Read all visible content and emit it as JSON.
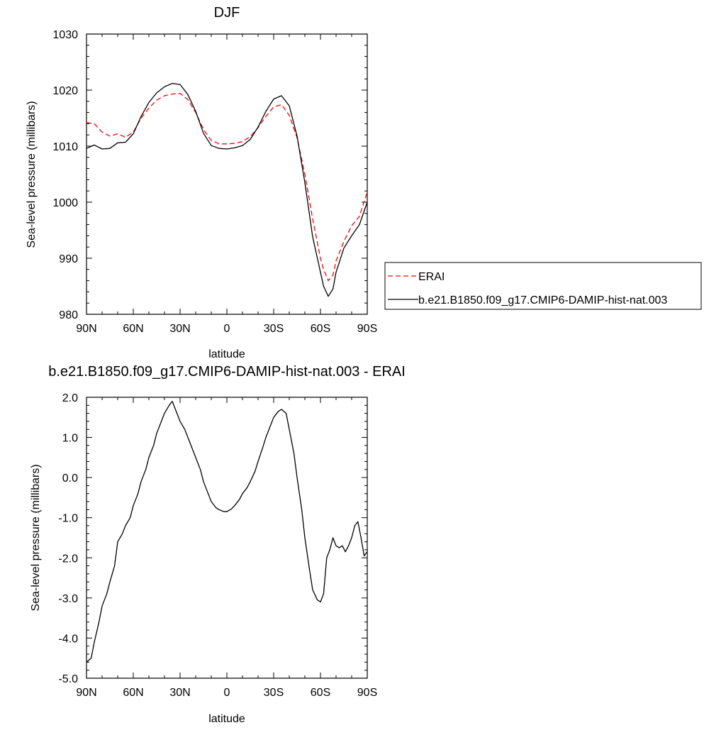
{
  "chart_data": [
    {
      "type": "line",
      "title": "DJF",
      "xlabel": "latitude",
      "ylabel": "Sea-level pressure (millibars)",
      "xlim": [
        -90,
        90
      ],
      "ylim": [
        980,
        1030
      ],
      "xticks": [
        -90,
        -60,
        -30,
        0,
        30,
        60,
        90
      ],
      "xtick_labels": [
        "90N",
        "60N",
        "30N",
        "0",
        "30S",
        "60S",
        "90S"
      ],
      "yticks": [
        980,
        990,
        1000,
        1010,
        1020,
        1030
      ],
      "ytick_labels": [
        "980",
        "990",
        "1000",
        "1010",
        "1020",
        "1030"
      ],
      "grid": false,
      "legend": {
        "placement": "right-outside",
        "entries": [
          {
            "name": "ERAI",
            "color": "#ff0000",
            "dash": "dashed"
          },
          {
            "name": "b.e21.B1850.f09_g17.CMIP6-DAMIP-hist-nat.003",
            "color": "#000000",
            "dash": "solid"
          }
        ]
      },
      "x": [
        -90,
        -85,
        -80,
        -75,
        -70,
        -65,
        -60,
        -55,
        -50,
        -45,
        -40,
        -35,
        -30,
        -25,
        -20,
        -15,
        -10,
        -5,
        0,
        5,
        10,
        15,
        20,
        25,
        30,
        35,
        40,
        45,
        50,
        55,
        60,
        62,
        65,
        68,
        70,
        75,
        80,
        85,
        90
      ],
      "series": [
        {
          "name": "ERAI",
          "color": "#ff0000",
          "dash": "dashed",
          "values": [
            1014.2,
            1014.0,
            1012.5,
            1011.8,
            1012.2,
            1011.6,
            1012.5,
            1015.0,
            1016.8,
            1018.2,
            1019.0,
            1019.3,
            1019.4,
            1018.3,
            1016.0,
            1013.0,
            1011.0,
            1010.4,
            1010.4,
            1010.5,
            1010.8,
            1011.7,
            1013.3,
            1015.3,
            1017.0,
            1017.4,
            1015.5,
            1011.5,
            1005.0,
            997.0,
            990.0,
            988.0,
            986.0,
            987.0,
            989.5,
            993.0,
            995.8,
            997.5,
            1001.8
          ]
        },
        {
          "name": "b.e21.B1850.f09_g17.CMIP6-DAMIP-hist-nat.003",
          "color": "#000000",
          "dash": "solid",
          "values": [
            1009.6,
            1010.2,
            1009.5,
            1009.6,
            1010.6,
            1010.7,
            1012.2,
            1015.3,
            1017.8,
            1019.5,
            1020.6,
            1021.2,
            1021.0,
            1019.2,
            1016.2,
            1012.3,
            1010.1,
            1009.6,
            1009.5,
            1009.7,
            1010.1,
            1011.2,
            1013.4,
            1016.2,
            1018.4,
            1019.0,
            1017.2,
            1011.8,
            1003.5,
            993.8,
            987.5,
            985.0,
            983.2,
            984.5,
            987.5,
            991.8,
            994.0,
            996.0,
            1000.0
          ]
        }
      ]
    },
    {
      "type": "line",
      "title": "b.e21.B1850.f09_g17.CMIP6-DAMIP-hist-nat.003 - ERAI",
      "xlabel": "latitude",
      "ylabel": "Sea-level pressure (millibars)",
      "xlim": [
        -90,
        90
      ],
      "ylim": [
        -5.0,
        2.0
      ],
      "xticks": [
        -90,
        -60,
        -30,
        0,
        30,
        60,
        90
      ],
      "xtick_labels": [
        "90N",
        "60N",
        "30N",
        "0",
        "30S",
        "60S",
        "90S"
      ],
      "yticks": [
        -5.0,
        -4.0,
        -3.0,
        -2.0,
        -1.0,
        0.0,
        1.0,
        2.0
      ],
      "ytick_labels": [
        "-5.0",
        "-4.0",
        "-3.0",
        "-2.0",
        "-1.0",
        "0.0",
        "1.0",
        "2.0"
      ],
      "grid": false,
      "x": [
        -90,
        -87,
        -85,
        -82,
        -80,
        -77,
        -75,
        -72,
        -70,
        -67,
        -65,
        -62,
        -60,
        -57,
        -55,
        -52,
        -50,
        -47,
        -45,
        -42,
        -40,
        -37,
        -35,
        -33,
        -30,
        -27,
        -25,
        -22,
        -20,
        -17,
        -15,
        -12,
        -10,
        -7,
        -5,
        -2,
        0,
        3,
        5,
        8,
        10,
        13,
        15,
        18,
        20,
        23,
        25,
        28,
        30,
        33,
        35,
        38,
        40,
        43,
        45,
        48,
        50,
        53,
        55,
        58,
        60,
        62,
        64,
        66,
        68,
        70,
        72,
        74,
        76,
        78,
        80,
        82,
        84,
        86,
        88,
        90
      ],
      "series": [
        {
          "name": "b.e21.B1850.f09_g17.CMIP6-DAMIP-hist-nat.003 - ERAI",
          "color": "#000000",
          "dash": "solid",
          "values": [
            -4.6,
            -4.5,
            -4.1,
            -3.6,
            -3.2,
            -2.9,
            -2.6,
            -2.2,
            -1.6,
            -1.4,
            -1.2,
            -1.0,
            -0.7,
            -0.4,
            -0.1,
            0.2,
            0.5,
            0.8,
            1.1,
            1.4,
            1.6,
            1.8,
            1.9,
            1.7,
            1.4,
            1.2,
            1.0,
            0.7,
            0.5,
            0.2,
            -0.1,
            -0.4,
            -0.6,
            -0.75,
            -0.8,
            -0.85,
            -0.85,
            -0.78,
            -0.7,
            -0.55,
            -0.4,
            -0.25,
            -0.1,
            0.15,
            0.4,
            0.75,
            1.0,
            1.3,
            1.5,
            1.65,
            1.7,
            1.6,
            1.2,
            0.6,
            0.0,
            -0.8,
            -1.5,
            -2.3,
            -2.8,
            -3.05,
            -3.1,
            -2.9,
            -2.0,
            -1.8,
            -1.5,
            -1.7,
            -1.75,
            -1.7,
            -1.85,
            -1.7,
            -1.5,
            -1.2,
            -1.1,
            -1.5,
            -1.95,
            -1.85
          ]
        }
      ]
    }
  ]
}
